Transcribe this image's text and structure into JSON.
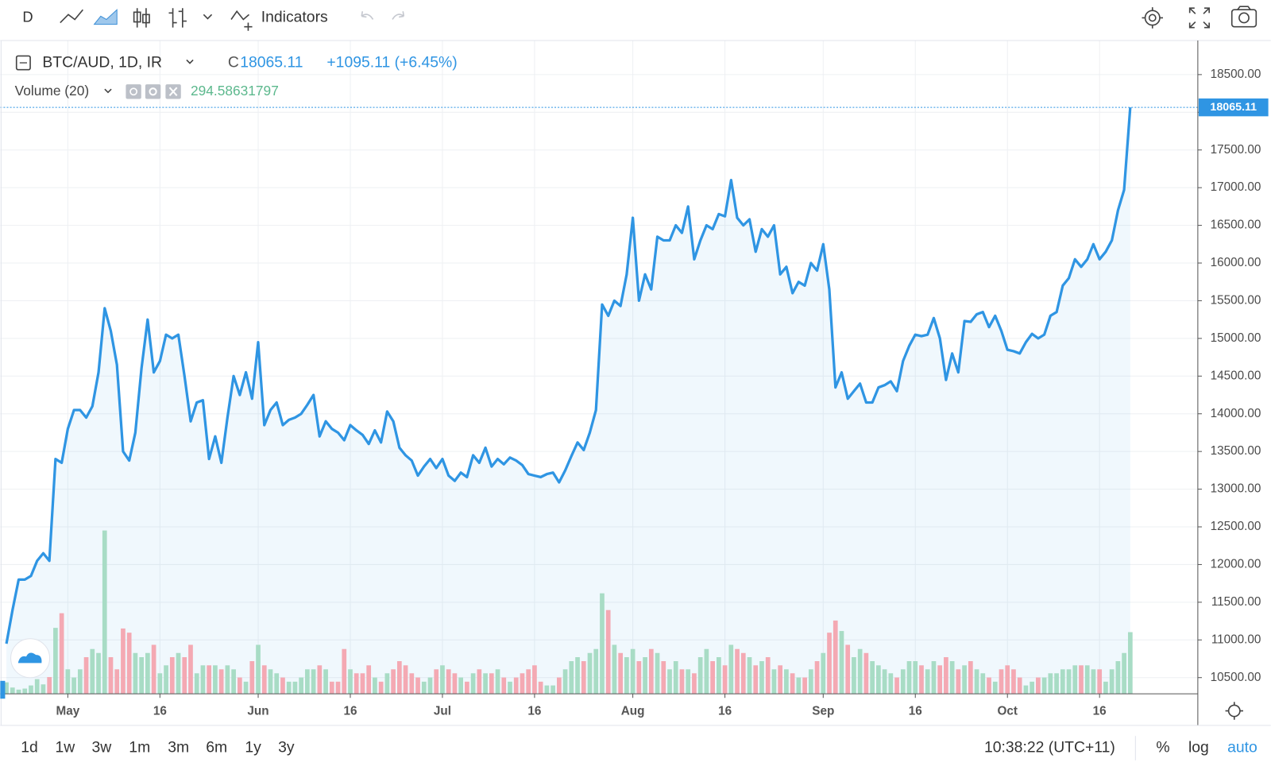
{
  "toolbar": {
    "interval": "D",
    "indicators": "Indicators"
  },
  "legend": {
    "symbol": "BTC/AUD, 1D, IR",
    "close_prefix": "C",
    "change": "+1095.11 (+6.45%)",
    "volume_label": "Volume (20)"
  },
  "chart_data": {
    "type": "area",
    "color": "#2f95e3",
    "up_color": "#a8dcc5",
    "down_color": "#f4a9b3",
    "x": [
      "04-21",
      "04-22",
      "04-23",
      "04-24",
      "04-25",
      "04-26",
      "04-27",
      "04-28",
      "04-29",
      "04-30",
      "05-01",
      "05-02",
      "05-03",
      "05-04",
      "05-05",
      "05-06",
      "05-07",
      "05-08",
      "05-09",
      "05-10",
      "05-11",
      "05-12",
      "05-13",
      "05-14",
      "05-15",
      "05-16",
      "05-17",
      "05-18",
      "05-19",
      "05-20",
      "05-21",
      "05-22",
      "05-23",
      "05-24",
      "05-25",
      "05-26",
      "05-27",
      "05-28",
      "05-29",
      "05-30",
      "05-31",
      "06-01",
      "06-02",
      "06-03",
      "06-04",
      "06-05",
      "06-06",
      "06-07",
      "06-08",
      "06-09",
      "06-10",
      "06-11",
      "06-12",
      "06-13",
      "06-14",
      "06-15",
      "06-16",
      "06-17",
      "06-18",
      "06-19",
      "06-20",
      "06-21",
      "06-22",
      "06-23",
      "06-24",
      "06-25",
      "06-26",
      "06-27",
      "06-28",
      "06-29",
      "06-30",
      "07-01",
      "07-02",
      "07-03",
      "07-04",
      "07-05",
      "07-06",
      "07-07",
      "07-08",
      "07-09",
      "07-10",
      "07-11",
      "07-12",
      "07-13",
      "07-14",
      "07-15",
      "07-16",
      "07-17",
      "07-18",
      "07-19",
      "07-20",
      "07-21",
      "07-22",
      "07-23",
      "07-24",
      "07-25",
      "07-26",
      "07-27",
      "07-28",
      "07-29",
      "07-30",
      "07-31",
      "08-01",
      "08-02",
      "08-03",
      "08-04",
      "08-05",
      "08-06",
      "08-07",
      "08-08",
      "08-09",
      "08-10",
      "08-11",
      "08-12",
      "08-13",
      "08-14",
      "08-15",
      "08-16",
      "08-17",
      "08-18",
      "08-19",
      "08-20",
      "08-21",
      "08-22",
      "08-23",
      "08-24",
      "08-25",
      "08-26",
      "08-27",
      "08-28",
      "08-29",
      "08-30",
      "08-31",
      "09-01",
      "09-02",
      "09-03",
      "09-04",
      "09-05",
      "09-06",
      "09-07",
      "09-08",
      "09-09",
      "09-10",
      "09-11",
      "09-12",
      "09-13",
      "09-14",
      "09-15",
      "09-16",
      "09-17",
      "09-18",
      "09-19",
      "09-20",
      "09-21",
      "09-22",
      "09-23",
      "09-24",
      "09-25",
      "09-26",
      "09-27",
      "09-28",
      "09-29",
      "09-30",
      "10-01",
      "10-02",
      "10-03",
      "10-04",
      "10-05",
      "10-06",
      "10-07",
      "10-08",
      "10-09",
      "10-10",
      "10-11",
      "10-12",
      "10-13",
      "10-14",
      "10-15",
      "10-16",
      "10-17",
      "10-18",
      "10-19",
      "10-20",
      "10-21"
    ],
    "values": [
      10950,
      11400,
      11800,
      11800,
      11850,
      12050,
      12150,
      12050,
      13400,
      13350,
      13800,
      14050,
      14050,
      13950,
      14100,
      14550,
      15400,
      15100,
      14650,
      13500,
      13380,
      13750,
      14600,
      15250,
      14550,
      14700,
      15050,
      15000,
      15050,
      14500,
      13900,
      14150,
      14180,
      13400,
      13700,
      13350,
      13950,
      14500,
      14250,
      14550,
      14200,
      14950,
      13850,
      14050,
      14150,
      13850,
      13920,
      13950,
      14000,
      14120,
      14250,
      13700,
      13900,
      13800,
      13750,
      13650,
      13850,
      13780,
      13720,
      13600,
      13780,
      13620,
      14030,
      13900,
      13550,
      13450,
      13380,
      13180,
      13300,
      13400,
      13280,
      13400,
      13180,
      13110,
      13220,
      13160,
      13450,
      13350,
      13550,
      13300,
      13400,
      13330,
      13420,
      13380,
      13320,
      13200,
      13180,
      13160,
      13200,
      13220,
      13090,
      13250,
      13440,
      13620,
      13520,
      13750,
      14050,
      15450,
      15300,
      15500,
      15430,
      15850,
      16600,
      15500,
      15850,
      15650,
      16350,
      16300,
      16300,
      16500,
      16400,
      16750,
      16050,
      16300,
      16500,
      16450,
      16650,
      16620,
      17100,
      16600,
      16500,
      16580,
      16150,
      16450,
      16350,
      16500,
      15850,
      15950,
      15600,
      15750,
      15700,
      16000,
      15900,
      16250,
      15650,
      14350,
      14550,
      14200,
      14300,
      14400,
      14150,
      14150,
      14350,
      14380,
      14430,
      14300,
      14700,
      14900,
      15050,
      15030,
      15050,
      15270,
      15000,
      14450,
      14800,
      14550,
      15230,
      15220,
      15320,
      15350,
      15150,
      15300,
      15100,
      14850,
      14830,
      14800,
      14950,
      15060,
      15000,
      15050,
      15300,
      15350,
      15700,
      15800,
      16050,
      15950,
      16050,
      16250,
      16050,
      16150,
      16300,
      16700,
      16970,
      18065.11
    ],
    "volumes": [
      55,
      30,
      20,
      25,
      40,
      70,
      45,
      80,
      315,
      385,
      117,
      78,
      117,
      175,
      214,
      195,
      780,
      175,
      117,
      312,
      292,
      195,
      175,
      195,
      234,
      98,
      136,
      175,
      195,
      175,
      234,
      98,
      136,
      136,
      136,
      117,
      136,
      117,
      78,
      58,
      156,
      234,
      136,
      117,
      98,
      78,
      58,
      58,
      78,
      117,
      117,
      136,
      117,
      58,
      58,
      214,
      117,
      98,
      98,
      136,
      78,
      58,
      98,
      117,
      156,
      136,
      98,
      78,
      58,
      78,
      117,
      136,
      117,
      98,
      78,
      58,
      98,
      117,
      98,
      98,
      117,
      78,
      58,
      78,
      98,
      117,
      136,
      58,
      40,
      40,
      78,
      117,
      156,
      175,
      156,
      195,
      214,
      480,
      400,
      234,
      195,
      175,
      214,
      156,
      175,
      214,
      195,
      156,
      117,
      156,
      117,
      117,
      98,
      175,
      214,
      156,
      175,
      136,
      234,
      214,
      195,
      175,
      136,
      156,
      175,
      117,
      136,
      117,
      98,
      78,
      78,
      117,
      156,
      195,
      292,
      350,
      300,
      234,
      175,
      214,
      195,
      156,
      136,
      117,
      98,
      78,
      117,
      156,
      156,
      136,
      117,
      156,
      136,
      175,
      156,
      117,
      136,
      156,
      117,
      98,
      78,
      58,
      117,
      136,
      117,
      78,
      40,
      58,
      78,
      78,
      98,
      98,
      117,
      117,
      136,
      136,
      136,
      117,
      117,
      58,
      117,
      156,
      195,
      294.58631797
    ],
    "xlim": [
      "04-20",
      "11-01"
    ],
    "xticks": [
      {
        "value": "05-01",
        "label": "May"
      },
      {
        "value": "05-16",
        "label": "16"
      },
      {
        "value": "06-01",
        "label": "Jun"
      },
      {
        "value": "06-16",
        "label": "16"
      },
      {
        "value": "07-01",
        "label": "Jul"
      },
      {
        "value": "07-16",
        "label": "16"
      },
      {
        "value": "08-01",
        "label": "Aug"
      },
      {
        "value": "08-16",
        "label": "16"
      },
      {
        "value": "09-01",
        "label": "Sep"
      },
      {
        "value": "09-16",
        "label": "16"
      },
      {
        "value": "10-01",
        "label": "Oct"
      },
      {
        "value": "10-16",
        "label": "16"
      }
    ],
    "ylim": [
      10285,
      18952
    ],
    "yticks": [
      {
        "value": 10500,
        "label": "10500.00"
      },
      {
        "value": 11000,
        "label": "11000.00"
      },
      {
        "value": 11500,
        "label": "11500.00"
      },
      {
        "value": 12000,
        "label": "12000.00"
      },
      {
        "value": 12500,
        "label": "12500.00"
      },
      {
        "value": 13000,
        "label": "13000.00"
      },
      {
        "value": 13500,
        "label": "13500.00"
      },
      {
        "value": 14000,
        "label": "14000.00"
      },
      {
        "value": 14500,
        "label": "14500.00"
      },
      {
        "value": 15000,
        "label": "15000.00"
      },
      {
        "value": 15500,
        "label": "15500.00"
      },
      {
        "value": 16000,
        "label": "16000.00"
      },
      {
        "value": 16500,
        "label": "16500.00"
      },
      {
        "value": 17000,
        "label": "17000.00"
      },
      {
        "value": 17500,
        "label": "17500.00"
      },
      {
        "value": 18000,
        "label": "18000.00"
      },
      {
        "value": 18500,
        "label": "18500.00"
      }
    ],
    "grid": true
  },
  "bottom_bar": {
    "ranges": [
      "1d",
      "1w",
      "3w",
      "1m",
      "3m",
      "6m",
      "1y",
      "3y"
    ],
    "time": "10:38:22 (UTC+11)",
    "options": [
      "%",
      "log",
      "auto"
    ]
  }
}
